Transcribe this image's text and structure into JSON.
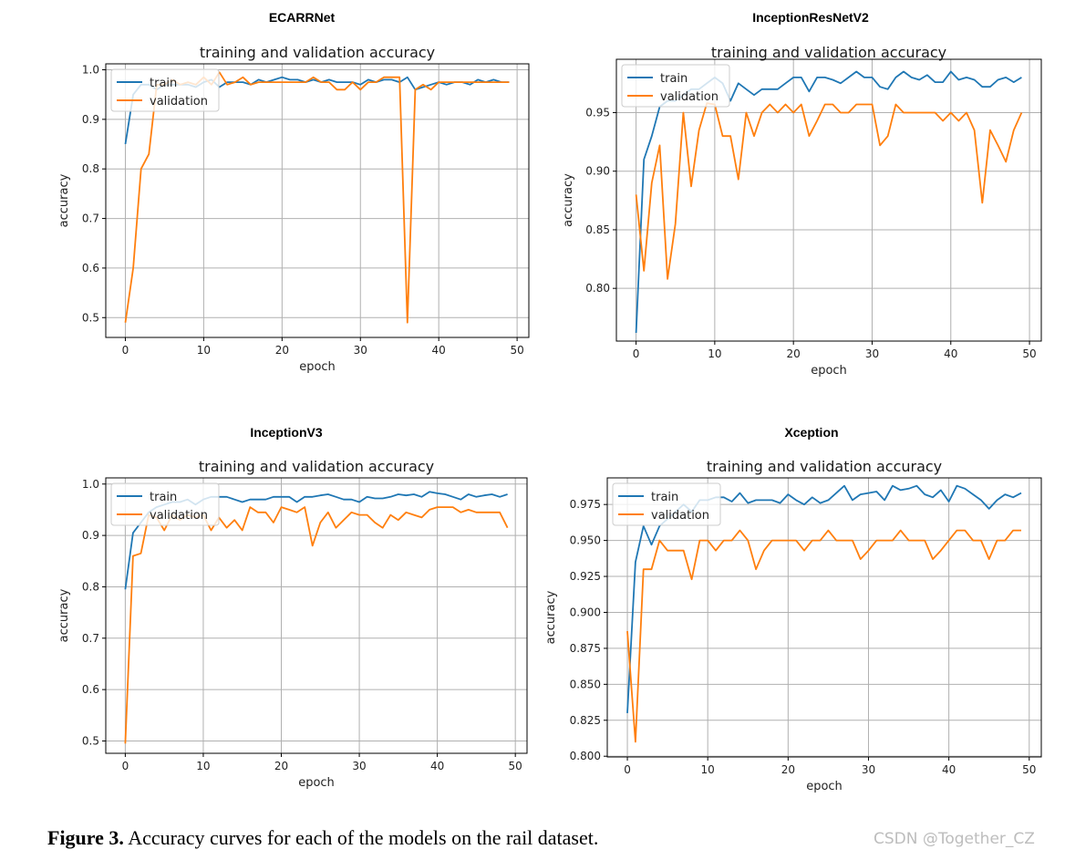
{
  "figure": {
    "caption_label": "Figure 3.",
    "caption_text": " Accuracy curves for each of the models on the rail dataset.",
    "watermark": "CSDN @Together_CZ",
    "colors": {
      "train": "#1f77b4",
      "validation": "#ff7f0e"
    }
  },
  "chart_data": [
    {
      "type": "line",
      "model": "ECARRNet",
      "title": "training and validation accuracy",
      "xlabel": "epoch",
      "ylabel": "accuracy",
      "xlim": [
        -2.5,
        51.5
      ],
      "ylim": [
        0.46,
        1.012
      ],
      "xticks": [
        0,
        10,
        20,
        30,
        40,
        50
      ],
      "yticks": [
        0.5,
        0.6,
        0.7,
        0.8,
        0.9,
        1.0
      ],
      "ytick_labels": [
        "0.5",
        "0.6",
        "0.7",
        "0.8",
        "0.9",
        "1.0"
      ],
      "grid": true,
      "legend": "upper left",
      "series": [
        {
          "name": "train",
          "values": [
            0.85,
            0.95,
            0.97,
            0.97,
            0.96,
            0.97,
            0.97,
            0.97,
            0.97,
            0.965,
            0.975,
            0.98,
            0.965,
            0.975,
            0.975,
            0.975,
            0.97,
            0.98,
            0.975,
            0.98,
            0.985,
            0.98,
            0.98,
            0.975,
            0.98,
            0.975,
            0.98,
            0.975,
            0.975,
            0.975,
            0.97,
            0.98,
            0.975,
            0.98,
            0.98,
            0.975,
            0.985,
            0.96,
            0.965,
            0.97,
            0.975,
            0.97,
            0.975,
            0.975,
            0.97,
            0.98,
            0.975,
            0.98,
            0.975,
            0.975
          ]
        },
        {
          "name": "validation",
          "values": [
            0.49,
            0.6,
            0.8,
            0.83,
            0.97,
            0.97,
            0.98,
            0.97,
            0.975,
            0.97,
            0.985,
            0.97,
            0.995,
            0.97,
            0.975,
            0.985,
            0.97,
            0.975,
            0.975,
            0.975,
            0.975,
            0.975,
            0.975,
            0.975,
            0.985,
            0.975,
            0.975,
            0.96,
            0.96,
            0.975,
            0.96,
            0.975,
            0.975,
            0.985,
            0.985,
            0.985,
            0.49,
            0.96,
            0.97,
            0.96,
            0.975,
            0.975,
            0.975,
            0.975,
            0.975,
            0.975,
            0.975,
            0.975,
            0.975,
            0.975
          ]
        }
      ]
    },
    {
      "type": "line",
      "model": "InceptionResNetV2",
      "title": "training and validation accuracy",
      "xlabel": "epoch",
      "ylabel": "accuracy",
      "xlim": [
        -2.5,
        51.5
      ],
      "ylim": [
        0.755,
        0.9955
      ],
      "xticks": [
        0,
        10,
        20,
        30,
        40,
        50
      ],
      "yticks": [
        0.8,
        0.85,
        0.9,
        0.95
      ],
      "ytick_labels": [
        "0.80",
        "0.85",
        "0.90",
        "0.95"
      ],
      "grid": true,
      "legend": "upper left",
      "series": [
        {
          "name": "train",
          "values": [
            0.762,
            0.91,
            0.93,
            0.955,
            0.96,
            0.96,
            0.965,
            0.97,
            0.97,
            0.975,
            0.98,
            0.975,
            0.96,
            0.975,
            0.97,
            0.965,
            0.97,
            0.97,
            0.97,
            0.975,
            0.98,
            0.98,
            0.968,
            0.98,
            0.98,
            0.978,
            0.975,
            0.98,
            0.985,
            0.98,
            0.98,
            0.972,
            0.97,
            0.98,
            0.985,
            0.98,
            0.978,
            0.982,
            0.976,
            0.976,
            0.985,
            0.978,
            0.98,
            0.978,
            0.972,
            0.972,
            0.978,
            0.98,
            0.976,
            0.98
          ]
        },
        {
          "name": "validation",
          "values": [
            0.88,
            0.815,
            0.89,
            0.922,
            0.808,
            0.855,
            0.95,
            0.887,
            0.935,
            0.958,
            0.957,
            0.93,
            0.93,
            0.893,
            0.95,
            0.93,
            0.95,
            0.957,
            0.95,
            0.957,
            0.95,
            0.957,
            0.93,
            0.943,
            0.957,
            0.957,
            0.95,
            0.95,
            0.957,
            0.957,
            0.957,
            0.922,
            0.93,
            0.957,
            0.95,
            0.95,
            0.95,
            0.95,
            0.95,
            0.943,
            0.95,
            0.943,
            0.95,
            0.935,
            0.873,
            0.935,
            0.922,
            0.908,
            0.935,
            0.95
          ]
        }
      ]
    },
    {
      "type": "line",
      "model": "InceptionV3",
      "title": "training and validation accuracy",
      "xlabel": "epoch",
      "ylabel": "accuracy",
      "xlim": [
        -2.5,
        51.5
      ],
      "ylim": [
        0.476,
        1.012
      ],
      "xticks": [
        0,
        10,
        20,
        30,
        40,
        50
      ],
      "yticks": [
        0.5,
        0.6,
        0.7,
        0.8,
        0.9,
        1.0
      ],
      "ytick_labels": [
        "0.5",
        "0.6",
        "0.7",
        "0.8",
        "0.9",
        "1.0"
      ],
      "grid": true,
      "legend": "upper left",
      "series": [
        {
          "name": "train",
          "values": [
            0.795,
            0.905,
            0.925,
            0.945,
            0.955,
            0.96,
            0.965,
            0.965,
            0.97,
            0.96,
            0.97,
            0.975,
            0.975,
            0.975,
            0.97,
            0.965,
            0.97,
            0.97,
            0.97,
            0.975,
            0.975,
            0.975,
            0.965,
            0.975,
            0.975,
            0.978,
            0.98,
            0.975,
            0.97,
            0.97,
            0.965,
            0.975,
            0.972,
            0.972,
            0.975,
            0.98,
            0.978,
            0.98,
            0.975,
            0.985,
            0.982,
            0.98,
            0.975,
            0.97,
            0.98,
            0.975,
            0.978,
            0.98,
            0.975,
            0.98
          ]
        },
        {
          "name": "validation",
          "values": [
            0.495,
            0.86,
            0.865,
            0.94,
            0.935,
            0.91,
            0.94,
            0.93,
            0.94,
            0.935,
            0.94,
            0.91,
            0.935,
            0.915,
            0.93,
            0.91,
            0.955,
            0.945,
            0.945,
            0.925,
            0.955,
            0.95,
            0.945,
            0.955,
            0.88,
            0.925,
            0.945,
            0.915,
            0.93,
            0.945,
            0.94,
            0.94,
            0.925,
            0.915,
            0.94,
            0.93,
            0.945,
            0.94,
            0.935,
            0.95,
            0.955,
            0.955,
            0.955,
            0.945,
            0.95,
            0.945,
            0.945,
            0.945,
            0.945,
            0.915
          ]
        }
      ]
    },
    {
      "type": "line",
      "model": "Xception",
      "title": "training and validation accuracy",
      "xlabel": "epoch",
      "ylabel": "accuracy",
      "xlim": [
        -2.5,
        51.5
      ],
      "ylim": [
        0.7995,
        0.9935
      ],
      "xticks": [
        0,
        10,
        20,
        30,
        40,
        50
      ],
      "yticks": [
        0.8,
        0.825,
        0.85,
        0.875,
        0.9,
        0.925,
        0.95,
        0.975
      ],
      "ytick_labels": [
        "0.800",
        "0.825",
        "0.850",
        "0.875",
        "0.900",
        "0.925",
        "0.950",
        "0.975"
      ],
      "grid": true,
      "legend": "upper left",
      "series": [
        {
          "name": "train",
          "values": [
            0.83,
            0.935,
            0.96,
            0.947,
            0.96,
            0.965,
            0.97,
            0.975,
            0.97,
            0.978,
            0.978,
            0.98,
            0.98,
            0.977,
            0.983,
            0.976,
            0.978,
            0.978,
            0.978,
            0.976,
            0.982,
            0.978,
            0.975,
            0.98,
            0.976,
            0.978,
            0.983,
            0.988,
            0.978,
            0.982,
            0.983,
            0.984,
            0.978,
            0.988,
            0.985,
            0.986,
            0.988,
            0.982,
            0.98,
            0.985,
            0.977,
            0.988,
            0.986,
            0.982,
            0.978,
            0.972,
            0.978,
            0.982,
            0.98,
            0.983
          ]
        },
        {
          "name": "validation",
          "values": [
            0.887,
            0.81,
            0.93,
            0.93,
            0.95,
            0.943,
            0.943,
            0.943,
            0.923,
            0.95,
            0.95,
            0.943,
            0.95,
            0.95,
            0.957,
            0.95,
            0.93,
            0.943,
            0.95,
            0.95,
            0.95,
            0.95,
            0.943,
            0.95,
            0.95,
            0.957,
            0.95,
            0.95,
            0.95,
            0.937,
            0.943,
            0.95,
            0.95,
            0.95,
            0.957,
            0.95,
            0.95,
            0.95,
            0.937,
            0.943,
            0.95,
            0.957,
            0.957,
            0.95,
            0.95,
            0.937,
            0.95,
            0.95,
            0.957,
            0.957
          ]
        }
      ]
    }
  ]
}
